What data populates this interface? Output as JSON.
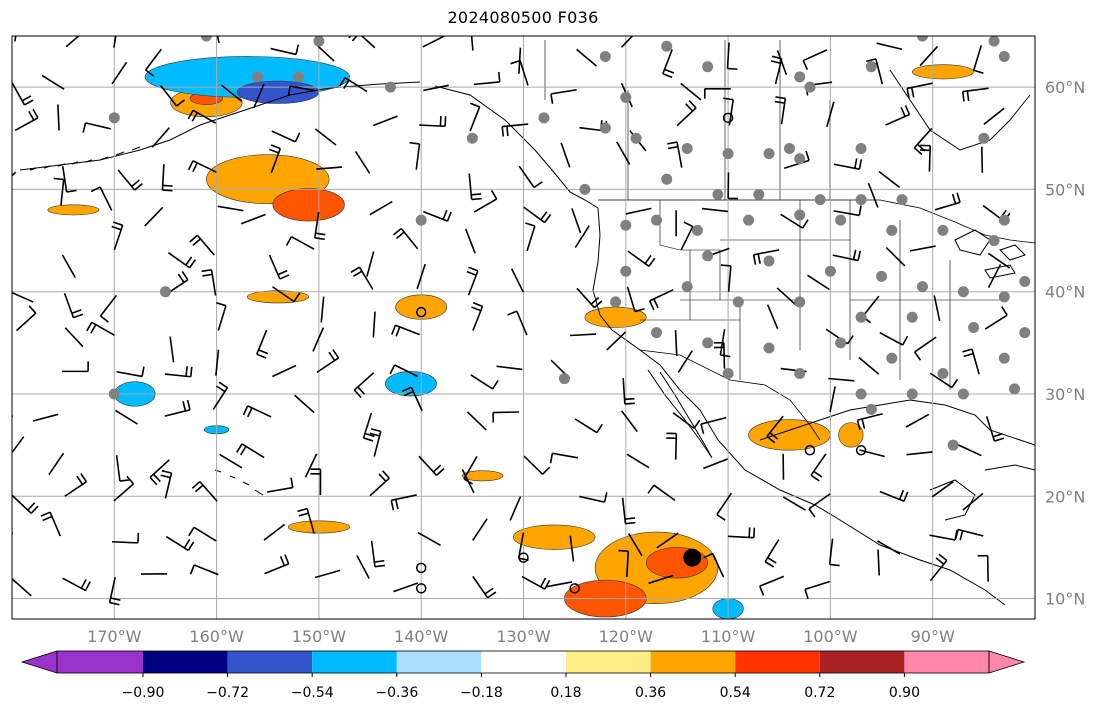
{
  "title": "2024080500 F036",
  "map": {
    "projection": "cylindrical",
    "lon_range": [
      -180,
      -80
    ],
    "lat_range": [
      8,
      65
    ],
    "lat_ticks": [
      {
        "value": 10,
        "label": "10°N"
      },
      {
        "value": 20,
        "label": "20°N"
      },
      {
        "value": 30,
        "label": "30°N"
      },
      {
        "value": 40,
        "label": "40°N"
      },
      {
        "value": 50,
        "label": "50°N"
      },
      {
        "value": 60,
        "label": "60°N"
      }
    ],
    "lon_ticks": [
      {
        "value": -170,
        "label": "170°W"
      },
      {
        "value": -160,
        "label": "160°W"
      },
      {
        "value": -150,
        "label": "150°W"
      },
      {
        "value": -140,
        "label": "140°W"
      },
      {
        "value": -130,
        "label": "130°W"
      },
      {
        "value": -120,
        "label": "120°W"
      },
      {
        "value": -110,
        "label": "110°W"
      },
      {
        "value": -100,
        "label": "100°W"
      },
      {
        "value": -90,
        "label": "90°W"
      }
    ],
    "grid": true,
    "station_dot_color": "#808080",
    "barb_color": "#000000"
  },
  "colorbar": {
    "orientation": "horizontal",
    "extend": "both",
    "colors": [
      "#9933cc",
      "#000080",
      "#3355cc",
      "#00bbff",
      "#aaddff",
      "#ffffff",
      "#ffee88",
      "#ffa500",
      "#ff3300",
      "#aa2222",
      "#ff88aa",
      "#ff88aa"
    ],
    "low_extend_color": "#9933cc",
    "high_extend_color": "#ff88aa",
    "segments": [
      {
        "color": "#000080"
      },
      {
        "color": "#3355cc"
      },
      {
        "color": "#00bbff"
      },
      {
        "color": "#aaddff"
      },
      {
        "color": "#ffffff"
      },
      {
        "color": "#ffee88"
      },
      {
        "color": "#ffa500"
      },
      {
        "color": "#ff3300"
      },
      {
        "color": "#aa2222"
      },
      {
        "color": "#ff88aa"
      }
    ],
    "ticks": [
      "−0.90",
      "−0.72",
      "−0.54",
      "−0.36",
      "−0.18",
      "0.18",
      "0.36",
      "0.54",
      "0.72",
      "0.90"
    ]
  },
  "fields": {
    "positive_regions": [
      {
        "lon": -155,
        "lat": 51,
        "rx": 6,
        "ry": 2.4,
        "level": "0.36"
      },
      {
        "lon": -151,
        "lat": 48.5,
        "rx": 3.5,
        "ry": 1.6,
        "level": "0.54"
      },
      {
        "lon": -161,
        "lat": 58.5,
        "rx": 3.5,
        "ry": 1.4,
        "level": "0.36"
      },
      {
        "lon": -161,
        "lat": 58.9,
        "rx": 1.6,
        "ry": 0.6,
        "level": "0.54"
      },
      {
        "lon": -117,
        "lat": 13,
        "rx": 6,
        "ry": 3.5,
        "level": "0.36"
      },
      {
        "lon": -115,
        "lat": 13.5,
        "rx": 3,
        "ry": 1.5,
        "level": "0.54"
      },
      {
        "lon": -122,
        "lat": 10,
        "rx": 4,
        "ry": 1.8,
        "level": "0.54"
      },
      {
        "lon": -127,
        "lat": 16,
        "rx": 4,
        "ry": 1.2,
        "level": "0.36"
      },
      {
        "lon": -104,
        "lat": 26,
        "rx": 4,
        "ry": 1.5,
        "level": "0.36"
      },
      {
        "lon": -121,
        "lat": 37.5,
        "rx": 3,
        "ry": 1,
        "level": "0.36"
      },
      {
        "lon": -140,
        "lat": 38.5,
        "rx": 2.5,
        "ry": 1.2,
        "level": "0.36"
      },
      {
        "lon": -98,
        "lat": 26,
        "rx": 1.2,
        "ry": 1.2,
        "level": "0.36"
      },
      {
        "lon": -150,
        "lat": 17,
        "rx": 3,
        "ry": 0.6,
        "level": "0.36"
      },
      {
        "lon": -134,
        "lat": 22,
        "rx": 2,
        "ry": 0.5,
        "level": "0.36"
      },
      {
        "lon": -89,
        "lat": 61.5,
        "rx": 3,
        "ry": 0.7,
        "level": "0.36"
      },
      {
        "lon": -154,
        "lat": 39.5,
        "rx": 3,
        "ry": 0.6,
        "level": "0.36"
      },
      {
        "lon": -174,
        "lat": 48,
        "rx": 2.5,
        "ry": 0.5,
        "level": "0.36"
      }
    ],
    "negative_regions": [
      {
        "lon": -157,
        "lat": 61,
        "rx": 10,
        "ry": 2,
        "level": "-0.36"
      },
      {
        "lon": -154,
        "lat": 59.5,
        "rx": 4,
        "ry": 1.1,
        "level": "-0.54"
      },
      {
        "lon": -168,
        "lat": 30,
        "rx": 2,
        "ry": 1.2,
        "level": "-0.36"
      },
      {
        "lon": -141,
        "lat": 31,
        "rx": 2.5,
        "ry": 1.2,
        "level": "-0.36"
      },
      {
        "lon": -110,
        "lat": 9,
        "rx": 1.5,
        "ry": 1,
        "level": "-0.36"
      },
      {
        "lon": -160,
        "lat": 26.5,
        "rx": 1.2,
        "ry": 0.4,
        "level": "-0.36"
      }
    ]
  },
  "stations": [
    [
      -122,
      56
    ],
    [
      -119,
      55
    ],
    [
      -114,
      54
    ],
    [
      -110,
      53.5
    ],
    [
      -106,
      53.5
    ],
    [
      -104,
      54
    ],
    [
      -103,
      53
    ],
    [
      -97,
      49
    ],
    [
      -93,
      49
    ],
    [
      -101,
      49
    ],
    [
      -107,
      49.5
    ],
    [
      -111,
      49.5
    ],
    [
      -116,
      51
    ],
    [
      -124,
      50
    ],
    [
      -120,
      59
    ],
    [
      -128,
      57
    ],
    [
      -135,
      55
    ],
    [
      -143,
      60
    ],
    [
      -152,
      61
    ],
    [
      -156,
      61
    ],
    [
      -170,
      57
    ],
    [
      -150,
      64.5
    ],
    [
      -161,
      65
    ],
    [
      -120,
      46.5
    ],
    [
      -117,
      47
    ],
    [
      -113,
      46
    ],
    [
      -108,
      47
    ],
    [
      -103,
      47.5
    ],
    [
      -99,
      47
    ],
    [
      -94,
      46
    ],
    [
      -89,
      46
    ],
    [
      -84,
      45
    ],
    [
      -120,
      42
    ],
    [
      -112,
      43.5
    ],
    [
      -106,
      43
    ],
    [
      -100,
      42
    ],
    [
      -95,
      41.5
    ],
    [
      -91,
      40.5
    ],
    [
      -87,
      40
    ],
    [
      -83,
      39.5
    ],
    [
      -81,
      41
    ],
    [
      -121,
      39
    ],
    [
      -114,
      40.5
    ],
    [
      -109,
      39
    ],
    [
      -103,
      39
    ],
    [
      -97,
      37.5
    ],
    [
      -92,
      37.5
    ],
    [
      -86,
      36.5
    ],
    [
      -81,
      36
    ],
    [
      -117,
      36
    ],
    [
      -112,
      35
    ],
    [
      -106,
      34.5
    ],
    [
      -99,
      35
    ],
    [
      -94,
      33.5
    ],
    [
      -89,
      32
    ],
    [
      -83,
      33.5
    ],
    [
      -110,
      32
    ],
    [
      -103,
      32
    ],
    [
      -97,
      30
    ],
    [
      -92,
      30
    ],
    [
      -87,
      30
    ],
    [
      -82,
      30.5
    ],
    [
      -96,
      28.5
    ],
    [
      -88,
      25
    ],
    [
      -126,
      31.5
    ],
    [
      -103,
      61
    ],
    [
      -112,
      62
    ],
    [
      -96,
      62
    ],
    [
      -122,
      63
    ],
    [
      -84,
      64.5
    ],
    [
      -91,
      65
    ],
    [
      -83,
      63
    ],
    [
      -85,
      55
    ],
    [
      -97,
      54
    ],
    [
      -83,
      47
    ],
    [
      -102,
      60
    ],
    [
      -116,
      64
    ],
    [
      -140,
      47
    ],
    [
      -165,
      40
    ],
    [
      -170,
      30
    ]
  ],
  "open_circles": [
    [
      -110,
      57
    ],
    [
      -140,
      38
    ],
    [
      -130,
      14
    ],
    [
      -140,
      13
    ],
    [
      -140,
      11
    ],
    [
      -125,
      11
    ],
    [
      -102,
      24.5
    ],
    [
      -97,
      24.5
    ]
  ],
  "large_dot": {
    "lon": -113.5,
    "lat": 14
  },
  "barb_lons": [
    -180,
    -175,
    -170,
    -165,
    -160,
    -155,
    -150,
    -145,
    -140,
    -135,
    -130,
    -125,
    -120,
    -115,
    -110,
    -105,
    -100,
    -95,
    -90,
    -85
  ],
  "barb_lats": [
    12,
    16,
    20,
    24,
    28,
    32,
    36,
    40,
    44,
    48,
    52,
    56,
    60,
    64
  ]
}
